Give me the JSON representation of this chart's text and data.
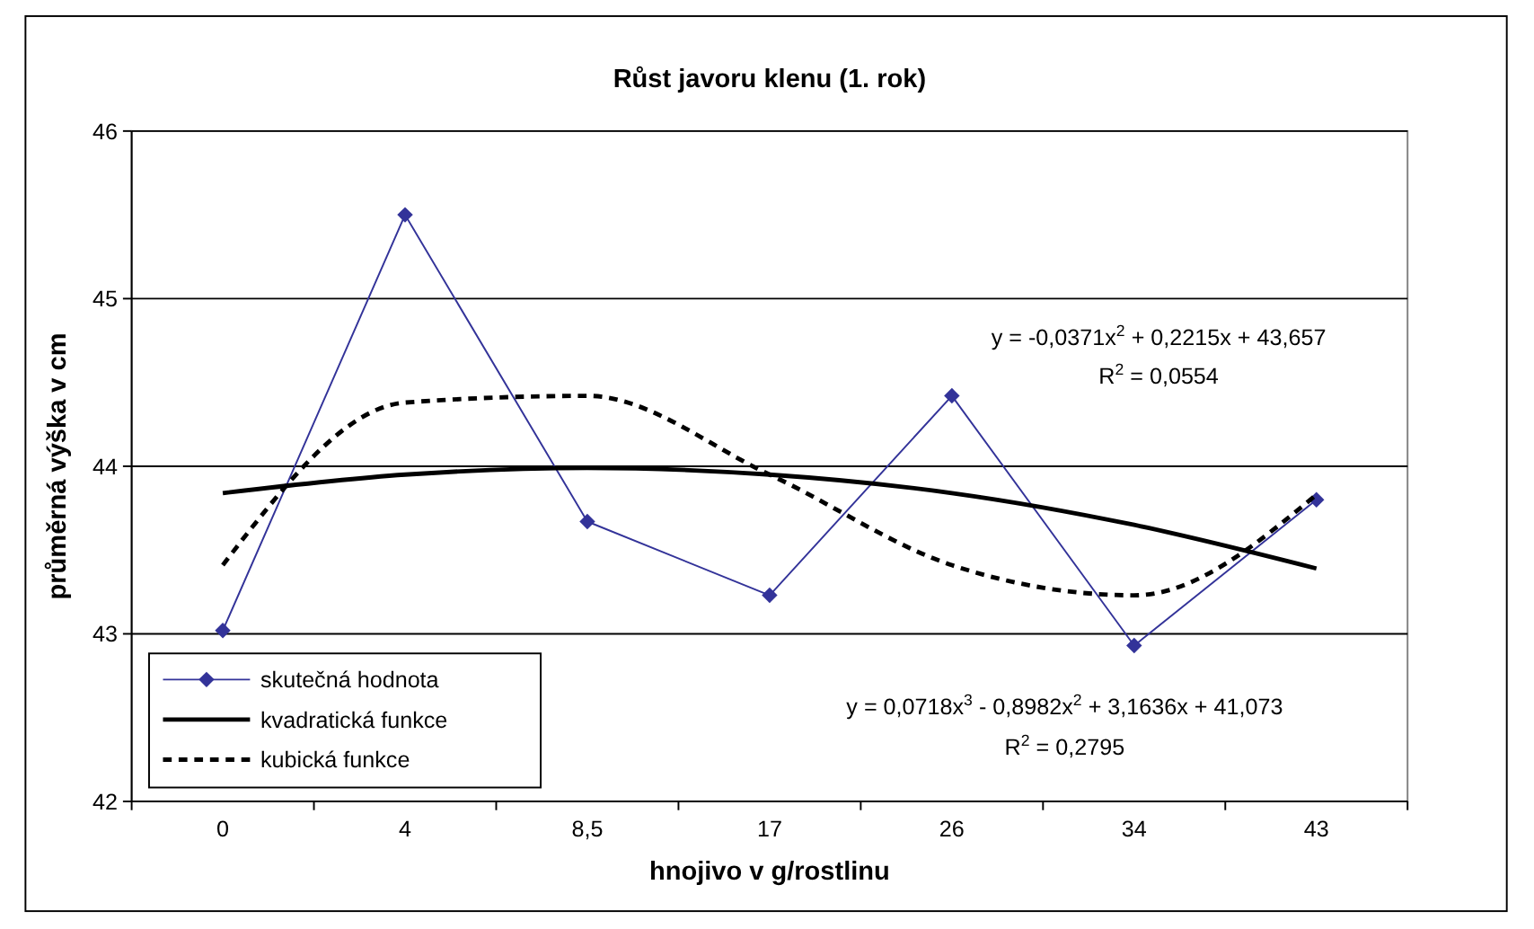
{
  "chart_data": {
    "type": "line",
    "title": "Růst javoru klenu (1. rok)",
    "xlabel": "hnojivo v g/rostlinu",
    "ylabel": "průměrná výška v cm",
    "categories": [
      "0",
      "4",
      "8,5",
      "17",
      "26",
      "34",
      "43"
    ],
    "ylim": [
      42,
      46
    ],
    "yticks": [
      42,
      43,
      44,
      45,
      46
    ],
    "grid": "y",
    "legend": "bottom left",
    "series": [
      {
        "name": "skutečná hodnota",
        "color": "#333399",
        "marker": "diamond",
        "line_style": "solid",
        "values": [
          43.02,
          45.5,
          43.67,
          43.23,
          44.42,
          42.93,
          43.8
        ]
      },
      {
        "name": "kvadratická funkce",
        "color": "#000000",
        "marker": "none",
        "line_style": "solid",
        "values": [
          43.84,
          43.95,
          43.99,
          43.95,
          43.84,
          43.65,
          43.39
        ]
      },
      {
        "name": "kubická funkce",
        "color": "#000000",
        "marker": "none",
        "line_style": "dashed",
        "values": [
          43.41,
          44.38,
          44.42,
          43.95,
          43.41,
          43.23,
          43.83
        ]
      }
    ],
    "annotations": [
      "y = -0,0371x$^{2}$ + 0,2215x + 43,657",
      "R$^{2}$ = 0,0554",
      "y = 0,0718x$^{3}$ - 0,8982x$^{2}$ + 3,1636x + 41,073",
      "R$^{2}$ = 0,2795"
    ]
  }
}
